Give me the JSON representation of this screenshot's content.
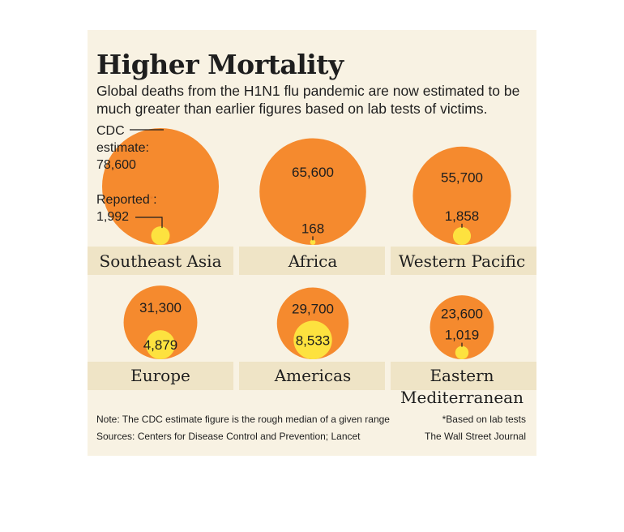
{
  "title": "Higher Mortality",
  "subtitle": "Global deaths from the H1N1 flu pandemic are now estimated to be much greater than earlier figures based on lab tests of victims.",
  "annotations": {
    "cdc_line1": "CDC",
    "cdc_line2": "estimate:",
    "cdc_value": "78,600",
    "reported_label": "Reported",
    "reported_mark": "*",
    "reported_suffix": ":",
    "reported_value": "1,992"
  },
  "footer": {
    "note": "Note: The CDC estimate figure is the rough median of a given range",
    "footnote": "*Based on lab tests",
    "sources": "Sources: Centers for Disease Control and Prevention; Lancet",
    "credit": "The Wall Street Journal"
  },
  "colors": {
    "cdc_estimate": "#f58a2e",
    "reported": "#fde23f",
    "label_band": "#efe4c6",
    "panel": "#f8f2e3"
  },
  "chart_data": {
    "type": "bubble",
    "series": [
      {
        "name": "CDC estimate"
      },
      {
        "name": "Reported"
      }
    ],
    "regions": [
      {
        "name": "Southeast Asia",
        "cdc_estimate": 78600,
        "reported": 1992
      },
      {
        "name": "Africa",
        "cdc_estimate": 65600,
        "reported": 168
      },
      {
        "name": "Western Pacific",
        "cdc_estimate": 55700,
        "reported": 1858
      },
      {
        "name": "Europe",
        "cdc_estimate": 31300,
        "reported": 4879
      },
      {
        "name": "Americas",
        "cdc_estimate": 29700,
        "reported": 8533
      },
      {
        "name": "Eastern Mediterranean",
        "cdc_estimate": 23600,
        "reported": 1019
      }
    ],
    "region_label_lines": [
      [
        "Southeast Asia"
      ],
      [
        "Africa"
      ],
      [
        "Western Pacific"
      ],
      [
        "Europe"
      ],
      [
        "Americas"
      ],
      [
        "Eastern",
        "Mediterranean"
      ]
    ]
  }
}
